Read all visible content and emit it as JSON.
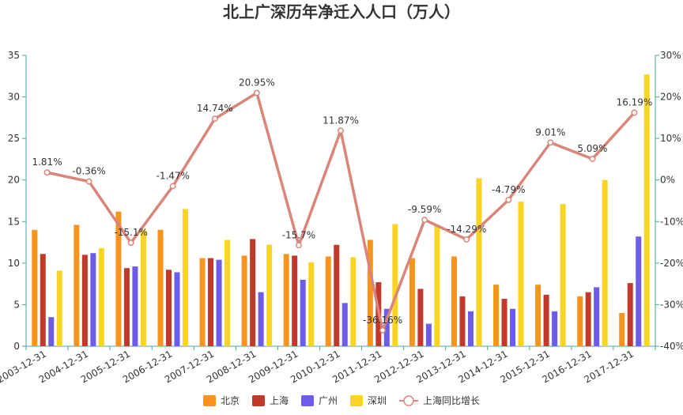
{
  "chart_data": {
    "type": "bar",
    "title": "北上广深历年净迁入人口（万人）",
    "categories": [
      "2003-12-31",
      "2004-12-31",
      "2005-12-31",
      "2006-12-31",
      "2007-12-31",
      "2008-12-31",
      "2009-12-31",
      "2010-12-31",
      "2011-12-31",
      "2012-12-31",
      "2013-12-31",
      "2014-12-31",
      "2015-12-31",
      "2016-12-31",
      "2017-12-31"
    ],
    "series": [
      {
        "name": "北京",
        "type": "bar",
        "color": "#f7941d",
        "values": [
          14.0,
          14.6,
          16.2,
          14.0,
          10.6,
          10.9,
          11.1,
          10.8,
          12.8,
          10.6,
          10.8,
          7.4,
          7.4,
          6.0,
          4.0
        ]
      },
      {
        "name": "上海",
        "type": "bar",
        "color": "#c0392b",
        "values": [
          11.1,
          11.0,
          9.4,
          9.2,
          10.6,
          12.9,
          10.9,
          12.2,
          7.7,
          6.9,
          6.0,
          5.7,
          6.2,
          6.5,
          7.6
        ]
      },
      {
        "name": "广州",
        "type": "bar",
        "color": "#6c5ce7",
        "values": [
          3.5,
          11.2,
          9.6,
          8.9,
          10.4,
          6.5,
          8.0,
          5.2,
          4.5,
          2.7,
          4.2,
          4.5,
          4.2,
          7.1,
          13.2
        ]
      },
      {
        "name": "深圳",
        "type": "bar",
        "color": "#f9d423",
        "values": [
          9.1,
          11.8,
          14.0,
          16.5,
          12.8,
          12.2,
          10.1,
          10.7,
          14.7,
          14.6,
          20.2,
          17.4,
          17.1,
          20.0,
          32.7
        ]
      },
      {
        "name": "上海同比增长",
        "type": "line",
        "axis": "right",
        "color": "#d9857a",
        "values": [
          1.81,
          -0.36,
          -15.1,
          -1.47,
          14.74,
          20.95,
          -15.7,
          11.87,
          -36.16,
          -9.59,
          -14.29,
          -4.79,
          9.01,
          5.09,
          16.19
        ],
        "labels": [
          "1.81%",
          "-0.36%",
          "-15.1%",
          "-1.47%",
          "14.74%",
          "20.95%",
          "-15.7%",
          "11.87%",
          "-36.16%",
          "-9.59%",
          "-14.29%",
          "-4.79%",
          "9.01%",
          "5.09%",
          "16.19%"
        ]
      }
    ],
    "ylim": [
      0,
      35
    ],
    "yticks": [
      0,
      5,
      10,
      15,
      20,
      25,
      30,
      35
    ],
    "y2lim": [
      -40,
      30
    ],
    "y2ticks": [
      "-40%",
      "-30%",
      "-20%",
      "-10%",
      "0%",
      "10%",
      "20%",
      "30%"
    ],
    "legend_position": "bottom-center",
    "grid": false
  }
}
